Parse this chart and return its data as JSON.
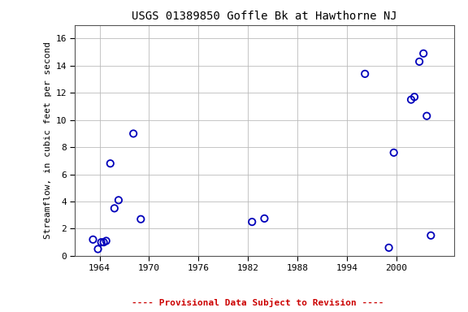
{
  "title": "USGS 01389850 Goffle Bk at Hawthorne NJ",
  "xlabel_note": "---- Provisional Data Subject to Revision ----",
  "ylabel": "Streamflow, in cubic feet per second",
  "x_data": [
    1963.2,
    1963.8,
    1964.2,
    1964.5,
    1964.8,
    1965.3,
    1965.8,
    1966.3,
    1968.1,
    1969.0,
    1982.5,
    1984.0,
    1996.2,
    1999.1,
    1999.7,
    2001.8,
    2002.2,
    2002.8,
    2003.3,
    2003.7,
    2004.2
  ],
  "y_data": [
    1.2,
    0.5,
    1.0,
    1.0,
    1.1,
    6.8,
    3.5,
    4.1,
    9.0,
    2.7,
    2.5,
    2.75,
    13.4,
    0.6,
    7.6,
    11.5,
    11.7,
    14.3,
    14.9,
    10.3,
    1.5
  ],
  "marker_color": "#0000bb",
  "marker_facecolor": "none",
  "marker_size": 6,
  "marker_linewidth": 1.3,
  "grid_color": "#bbbbbb",
  "title_fontsize": 10,
  "ylabel_fontsize": 8,
  "tick_fontsize": 8,
  "xlim": [
    1961,
    2007
  ],
  "ylim": [
    0,
    17
  ],
  "xticks": [
    1964,
    1970,
    1976,
    1982,
    1988,
    1994,
    2000
  ],
  "yticks": [
    0,
    2,
    4,
    6,
    8,
    10,
    12,
    14,
    16
  ],
  "background_color": "#ffffff",
  "note_color": "#cc0000",
  "note_fontsize": 8
}
